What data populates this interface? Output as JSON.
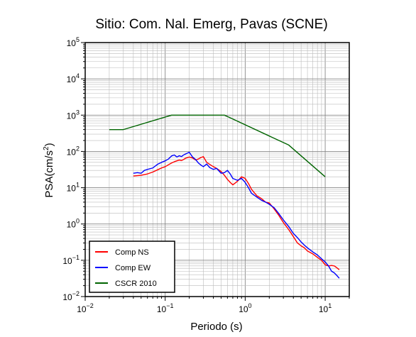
{
  "chart_data": {
    "type": "line",
    "title": "Sitio: Com. Nal. Emerg, Pavas (SCNE)",
    "xlabel": "Periodo (s)",
    "ylabel": "PSA(cm/s",
    "ylabel_sup": "2",
    "ylabel_close": ")",
    "xscale": "log",
    "yscale": "log",
    "xlim": [
      0.01,
      20
    ],
    "ylim": [
      0.01,
      100000
    ],
    "grid": true,
    "legend_position": "bottom-left",
    "x_ticks": [
      {
        "value": 0.01,
        "base": "10",
        "exp": "−2"
      },
      {
        "value": 0.1,
        "base": "10",
        "exp": "−1"
      },
      {
        "value": 1,
        "base": "10",
        "exp": "0"
      },
      {
        "value": 10,
        "base": "10",
        "exp": "1"
      }
    ],
    "y_ticks": [
      {
        "value": 0.01,
        "base": "10",
        "exp": "−2"
      },
      {
        "value": 0.1,
        "base": "10",
        "exp": "−1"
      },
      {
        "value": 1,
        "base": "10",
        "exp": "0"
      },
      {
        "value": 10,
        "base": "10",
        "exp": "1"
      },
      {
        "value": 100,
        "base": "10",
        "exp": "2"
      },
      {
        "value": 1000,
        "base": "10",
        "exp": "3"
      },
      {
        "value": 10000,
        "base": "10",
        "exp": "4"
      },
      {
        "value": 100000,
        "base": "10",
        "exp": "5"
      }
    ],
    "series": [
      {
        "name": "Comp NS",
        "color": "#ff0000",
        "x": [
          0.04,
          0.05,
          0.06,
          0.07,
          0.08,
          0.09,
          0.1,
          0.11,
          0.12,
          0.13,
          0.14,
          0.15,
          0.16,
          0.17,
          0.18,
          0.2,
          0.22,
          0.24,
          0.26,
          0.28,
          0.3,
          0.33,
          0.36,
          0.4,
          0.44,
          0.5,
          0.55,
          0.6,
          0.65,
          0.7,
          0.8,
          0.9,
          1.0,
          1.1,
          1.2,
          1.4,
          1.6,
          1.8,
          2.0,
          2.3,
          2.6,
          3.0,
          3.5,
          4.0,
          4.5,
          5.0,
          5.5,
          6.0,
          7.0,
          8.0,
          9.0,
          10.0,
          11.0,
          12.0,
          13.0,
          14.0,
          15.0
        ],
        "y": [
          21,
          22,
          24,
          27,
          31,
          35,
          38,
          43,
          48,
          52,
          55,
          58,
          56,
          60,
          65,
          70,
          66,
          58,
          62,
          68,
          72,
          50,
          44,
          38,
          34,
          28,
          22,
          17,
          14,
          12,
          15,
          20,
          18,
          13,
          9,
          6,
          5,
          4,
          3.8,
          2.6,
          1.8,
          1.1,
          0.7,
          0.45,
          0.3,
          0.25,
          0.22,
          0.18,
          0.15,
          0.12,
          0.1,
          0.075,
          0.07,
          0.072,
          0.07,
          0.062,
          0.055
        ]
      },
      {
        "name": "Comp EW",
        "color": "#0000ff",
        "x": [
          0.04,
          0.045,
          0.05,
          0.055,
          0.06,
          0.07,
          0.08,
          0.09,
          0.1,
          0.11,
          0.12,
          0.13,
          0.14,
          0.15,
          0.16,
          0.17,
          0.18,
          0.19,
          0.2,
          0.22,
          0.24,
          0.26,
          0.28,
          0.3,
          0.33,
          0.36,
          0.4,
          0.44,
          0.5,
          0.55,
          0.6,
          0.65,
          0.7,
          0.8,
          0.9,
          1.0,
          1.1,
          1.2,
          1.4,
          1.6,
          1.8,
          2.0,
          2.3,
          2.6,
          3.0,
          3.5,
          4.0,
          4.5,
          5.0,
          5.5,
          6.0,
          7.0,
          8.0,
          9.0,
          10.0,
          11.0,
          12.0,
          13.0,
          14.0,
          15.0
        ],
        "y": [
          25,
          26,
          25,
          30,
          32,
          35,
          44,
          50,
          55,
          62,
          75,
          80,
          70,
          76,
          72,
          80,
          85,
          90,
          95,
          70,
          60,
          48,
          42,
          38,
          45,
          36,
          32,
          34,
          25,
          26,
          30,
          24,
          18,
          16,
          18,
          14,
          10,
          7,
          5.5,
          4.5,
          4,
          3.5,
          2.8,
          2,
          1.3,
          0.85,
          0.55,
          0.42,
          0.32,
          0.26,
          0.22,
          0.17,
          0.14,
          0.11,
          0.09,
          0.07,
          0.05,
          0.045,
          0.038,
          0.032
        ]
      },
      {
        "name": "CSCR 2010",
        "color": "#006400",
        "x": [
          0.02,
          0.03,
          0.12,
          0.55,
          3.5,
          10.0
        ],
        "y": [
          400,
          400,
          1000,
          1000,
          150,
          20
        ]
      }
    ]
  }
}
